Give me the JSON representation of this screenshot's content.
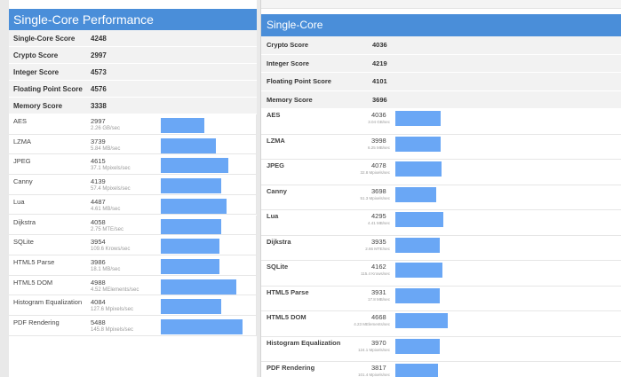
{
  "left": {
    "title": "Single-Core Performance",
    "scores": [
      {
        "label": "Single-Core Score",
        "value": "4248"
      },
      {
        "label": "Crypto Score",
        "value": "2997"
      },
      {
        "label": "Integer Score",
        "value": "4573"
      },
      {
        "label": "Floating Point Score",
        "value": "4576"
      },
      {
        "label": "Memory Score",
        "value": "3338"
      }
    ],
    "benchmarks": [
      {
        "name": "AES",
        "score": "2997",
        "rate": "2.26 GB/sec",
        "level": 0.43
      },
      {
        "name": "LZMA",
        "score": "3739",
        "rate": "5.84 MB/sec",
        "level": 0.54
      },
      {
        "name": "JPEG",
        "score": "4615",
        "rate": "37.1 Mpixels/sec",
        "level": 0.66
      },
      {
        "name": "Canny",
        "score": "4139",
        "rate": "57.4 Mpixels/sec",
        "level": 0.59
      },
      {
        "name": "Lua",
        "score": "4487",
        "rate": "4.61 MB/sec",
        "level": 0.64
      },
      {
        "name": "Dijkstra",
        "score": "4058",
        "rate": "2.75 MTE/sec",
        "level": 0.59
      },
      {
        "name": "SQLite",
        "score": "3954",
        "rate": "109.6 Krows/sec",
        "level": 0.57
      },
      {
        "name": "HTML5 Parse",
        "score": "3986",
        "rate": "18.1 MB/sec",
        "level": 0.57
      },
      {
        "name": "HTML5 DOM",
        "score": "4988",
        "rate": "4.52 MElements/sec",
        "level": 0.74
      },
      {
        "name": "Histogram Equalization",
        "score": "4084",
        "rate": "127.6 Mpixels/sec",
        "level": 0.59
      },
      {
        "name": "PDF Rendering",
        "score": "5488",
        "rate": "145.8 Mpixels/sec",
        "level": 0.8
      }
    ]
  },
  "right": {
    "title": "Single-Core",
    "scores": [
      {
        "label": "Crypto Score",
        "value": "4036"
      },
      {
        "label": "Integer Score",
        "value": "4219"
      },
      {
        "label": "Floating Point Score",
        "value": "4101"
      },
      {
        "label": "Memory Score",
        "value": "3696"
      }
    ],
    "benchmarks": [
      {
        "name": "AES",
        "score": "4036",
        "rate": "3.04 GB/sec",
        "level": 0.58
      },
      {
        "name": "LZMA",
        "score": "3998",
        "rate": "6.25 MB/sec",
        "level": 0.58
      },
      {
        "name": "JPEG",
        "score": "4078",
        "rate": "32.8 Mpixels/sec",
        "level": 0.59
      },
      {
        "name": "Canny",
        "score": "3698",
        "rate": "51.3 Mpixels/sec",
        "level": 0.53
      },
      {
        "name": "Lua",
        "score": "4295",
        "rate": "4.41 MB/sec",
        "level": 0.62
      },
      {
        "name": "Dijkstra",
        "score": "3935",
        "rate": "2.66 MTE/sec",
        "level": 0.57
      },
      {
        "name": "SQLite",
        "score": "4162",
        "rate": "115.4 Krows/sec",
        "level": 0.6
      },
      {
        "name": "HTML5 Parse",
        "score": "3931",
        "rate": "17.8 MB/sec",
        "level": 0.57
      },
      {
        "name": "HTML5 DOM",
        "score": "4668",
        "rate": "4.23 MElements/sec",
        "level": 0.67
      },
      {
        "name": "Histogram Equalization",
        "score": "3970",
        "rate": "124.1 Mpixels/sec",
        "level": 0.57
      },
      {
        "name": "PDF Rendering",
        "score": "3817",
        "rate": "101.4 Mpixels/sec",
        "level": 0.55
      }
    ]
  },
  "colors": {
    "header": "#4a8ed9",
    "bar": "#6aa7f5",
    "score_row_bg": "#f2f2f2"
  }
}
